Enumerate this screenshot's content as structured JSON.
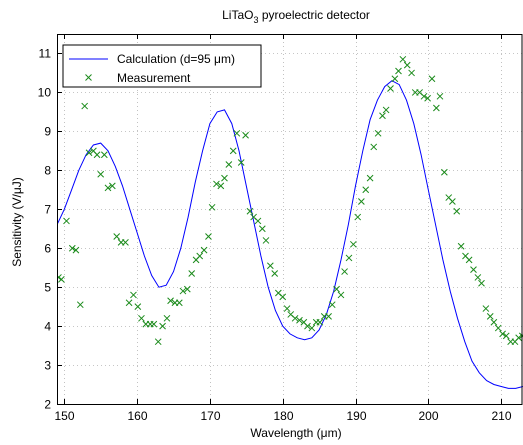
{
  "chart_data": {
    "type": "line",
    "title": "LiTaO",
    "title_sub": "3",
    "title_rest": " pyroelectric detector",
    "xlabel": "Wavelength (μm)",
    "ylabel": "Sensitivity (V/μJ)",
    "xlim": [
      149,
      213
    ],
    "ylim": [
      2,
      11.5
    ],
    "xticks": [
      150,
      160,
      170,
      180,
      190,
      200,
      210
    ],
    "yticks": [
      2,
      3,
      4,
      5,
      6,
      7,
      8,
      9,
      10,
      11
    ],
    "grid": true,
    "legend_position": "top-left",
    "series": [
      {
        "name": "Calculation (d=95 μm)",
        "style": "line",
        "color": "#0000ff",
        "x": [
          149,
          150,
          151,
          152,
          153,
          154,
          155,
          156,
          157,
          158,
          159,
          160,
          161,
          162,
          163,
          164,
          165,
          166,
          167,
          168,
          169,
          170,
          171,
          172,
          173,
          174,
          175,
          176,
          177,
          178,
          179,
          180,
          181,
          182,
          183,
          184,
          185,
          186,
          187,
          188,
          189,
          190,
          191,
          192,
          193,
          194,
          195,
          196,
          197,
          198,
          199,
          200,
          201,
          202,
          203,
          204,
          205,
          206,
          207,
          208,
          209,
          210,
          211,
          212,
          213
        ],
        "y": [
          6.6,
          7.0,
          7.5,
          8.0,
          8.4,
          8.65,
          8.7,
          8.5,
          8.1,
          7.6,
          7.0,
          6.4,
          5.8,
          5.3,
          5.0,
          5.05,
          5.4,
          6.0,
          6.8,
          7.7,
          8.5,
          9.2,
          9.5,
          9.55,
          9.2,
          8.5,
          7.6,
          6.7,
          5.8,
          5.0,
          4.4,
          4.0,
          3.8,
          3.7,
          3.65,
          3.7,
          3.9,
          4.3,
          4.9,
          5.7,
          6.6,
          7.6,
          8.5,
          9.3,
          9.8,
          10.15,
          10.3,
          10.2,
          9.8,
          9.2,
          8.4,
          7.5,
          6.6,
          5.7,
          4.9,
          4.2,
          3.6,
          3.1,
          2.8,
          2.6,
          2.5,
          2.45,
          2.4,
          2.4,
          2.45
        ]
      },
      {
        "name": "Measurement",
        "style": "marker-x",
        "color": "#1a8a1a",
        "x": [
          149.2,
          149.6,
          150.3,
          151.1,
          151.6,
          152.2,
          152.8,
          153.4,
          154.0,
          154.5,
          155.0,
          155.5,
          156.0,
          156.6,
          157.2,
          157.8,
          158.4,
          158.9,
          159.5,
          160.1,
          160.6,
          161.2,
          161.8,
          162.3,
          162.9,
          163.5,
          164.1,
          164.6,
          165.2,
          165.8,
          166.3,
          166.9,
          167.5,
          168.1,
          168.6,
          169.2,
          169.8,
          170.3,
          170.9,
          171.5,
          172.0,
          172.6,
          173.2,
          173.7,
          174.3,
          174.9,
          175.5,
          176.0,
          176.6,
          177.2,
          177.7,
          178.3,
          178.9,
          179.4,
          180.0,
          180.6,
          181.1,
          181.7,
          182.3,
          182.9,
          183.4,
          184.0,
          184.6,
          185.1,
          185.7,
          186.3,
          186.8,
          187.4,
          188.0,
          188.5,
          189.1,
          189.7,
          190.3,
          190.8,
          191.4,
          192.0,
          192.5,
          193.1,
          193.7,
          194.2,
          194.8,
          195.4,
          195.9,
          196.5,
          197.1,
          197.7,
          198.2,
          198.8,
          199.4,
          199.9,
          200.5,
          201.1,
          201.6,
          202.2,
          202.8,
          203.3,
          203.9,
          204.5,
          205.1,
          205.6,
          206.2,
          206.8,
          207.3,
          207.9,
          208.5,
          209.0,
          209.6,
          210.2,
          210.7,
          211.3,
          211.9,
          212.4,
          212.9
        ],
        "y": [
          5.25,
          5.2,
          6.7,
          6.0,
          5.95,
          4.55,
          9.65,
          8.45,
          8.5,
          8.4,
          7.9,
          8.4,
          7.55,
          7.6,
          6.3,
          6.15,
          6.15,
          4.6,
          4.8,
          4.5,
          4.2,
          4.05,
          4.05,
          4.05,
          3.6,
          4.0,
          4.2,
          4.65,
          4.6,
          4.6,
          4.9,
          4.95,
          5.35,
          5.7,
          5.8,
          5.95,
          6.3,
          7.05,
          7.65,
          7.6,
          7.8,
          8.15,
          8.5,
          8.95,
          8.2,
          8.9,
          6.95,
          6.8,
          6.7,
          6.5,
          6.2,
          5.55,
          5.35,
          4.85,
          4.75,
          4.45,
          4.3,
          4.2,
          4.15,
          4.1,
          4.0,
          3.95,
          4.1,
          4.1,
          4.25,
          4.25,
          4.55,
          4.95,
          4.8,
          5.4,
          5.75,
          6.1,
          6.8,
          7.2,
          7.5,
          7.8,
          8.6,
          8.95,
          9.4,
          9.55,
          10.1,
          10.35,
          10.55,
          10.85,
          10.7,
          10.5,
          10.0,
          10.0,
          9.9,
          9.85,
          10.35,
          9.6,
          9.9,
          7.95,
          7.3,
          7.2,
          6.95,
          6.05,
          5.8,
          5.7,
          5.45,
          5.25,
          5.1,
          4.45,
          4.25,
          4.1,
          3.95,
          3.8,
          3.75,
          3.6,
          3.6,
          3.7,
          3.75
        ]
      }
    ]
  }
}
